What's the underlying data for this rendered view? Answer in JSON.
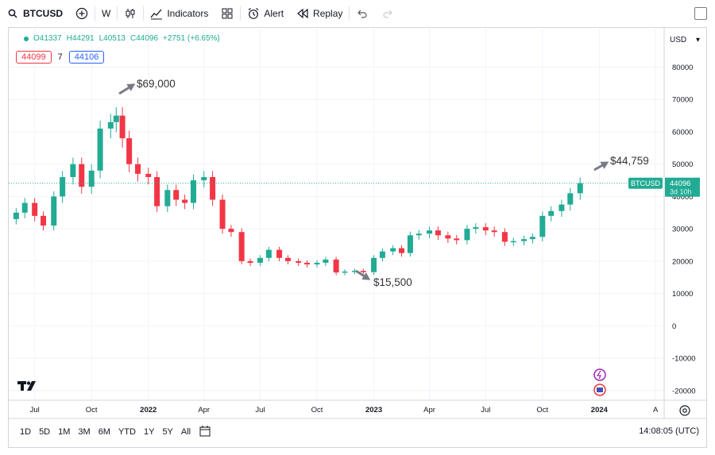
{
  "toolbar": {
    "symbol": "BTCUSD",
    "interval": "W",
    "indicators_label": "Indicators",
    "alert_label": "Alert",
    "replay_label": "Replay"
  },
  "legend": {
    "open": "O41337",
    "high": "H44291",
    "low": "L40513",
    "close": "C44096",
    "change": "+2751 (+6.65%)"
  },
  "price_tags": {
    "bid": "44099",
    "spread": "7",
    "ask": "44106"
  },
  "currency": "USD",
  "last_price": {
    "symbol": "BTCUSD",
    "price": "44096",
    "countdown": "3d 10h"
  },
  "annotations": [
    {
      "text": "$69,000",
      "date": "2021-11",
      "value": 69000
    },
    {
      "text": "$15,500",
      "date": "2022-11",
      "value": 15500
    },
    {
      "text": "$44,759",
      "date": "2023-12",
      "value": 44759
    }
  ],
  "range_buttons": [
    "1D",
    "5D",
    "1M",
    "3M",
    "6M",
    "YTD",
    "1Y",
    "5Y",
    "All"
  ],
  "clock": "14:08:05 (UTC)",
  "colors": {
    "up": "#22ab94",
    "down": "#f23645",
    "annotation": "#787b86"
  },
  "chart_data": {
    "type": "candlestick",
    "x_ticks": [
      "Jul",
      "Oct",
      "2022",
      "Apr",
      "Jul",
      "Oct",
      "2023",
      "Apr",
      "Jul",
      "Oct",
      "2024",
      "A"
    ],
    "y_ticks": [
      80000,
      70000,
      60000,
      50000,
      40000,
      30000,
      20000,
      10000,
      0,
      -10000,
      -20000
    ],
    "ylim": [
      -23000,
      87000
    ],
    "close_series": [
      {
        "date": "2021-06",
        "close": 35000
      },
      {
        "date": "2021-06-15",
        "close": 38000
      },
      {
        "date": "2021-07",
        "close": 34000
      },
      {
        "date": "2021-07-15",
        "close": 31000
      },
      {
        "date": "2021-08",
        "close": 40000
      },
      {
        "date": "2021-08-15",
        "close": 46000
      },
      {
        "date": "2021-09",
        "close": 50000
      },
      {
        "date": "2021-09-15",
        "close": 43000
      },
      {
        "date": "2021-10",
        "close": 48000
      },
      {
        "date": "2021-10-15",
        "close": 61000
      },
      {
        "date": "2021-11",
        "close": 63000
      },
      {
        "date": "2021-11-10",
        "close": 65000
      },
      {
        "date": "2021-11-20",
        "close": 58000
      },
      {
        "date": "2021-12",
        "close": 50000
      },
      {
        "date": "2021-12-15",
        "close": 47000
      },
      {
        "date": "2022-01",
        "close": 46000
      },
      {
        "date": "2022-01-15",
        "close": 37000
      },
      {
        "date": "2022-02",
        "close": 42000
      },
      {
        "date": "2022-02-15",
        "close": 39000
      },
      {
        "date": "2022-03",
        "close": 38000
      },
      {
        "date": "2022-03-15",
        "close": 45000
      },
      {
        "date": "2022-04",
        "close": 46000
      },
      {
        "date": "2022-04-15",
        "close": 39000
      },
      {
        "date": "2022-05",
        "close": 30000
      },
      {
        "date": "2022-05-15",
        "close": 29000
      },
      {
        "date": "2022-06",
        "close": 20000
      },
      {
        "date": "2022-06-15",
        "close": 19500
      },
      {
        "date": "2022-07",
        "close": 21000
      },
      {
        "date": "2022-07-15",
        "close": 23500
      },
      {
        "date": "2022-08",
        "close": 21000
      },
      {
        "date": "2022-08-15",
        "close": 20000
      },
      {
        "date": "2022-09",
        "close": 19500
      },
      {
        "date": "2022-09-15",
        "close": 19000
      },
      {
        "date": "2022-10",
        "close": 19500
      },
      {
        "date": "2022-10-15",
        "close": 20500
      },
      {
        "date": "2022-11",
        "close": 16500
      },
      {
        "date": "2022-11-15",
        "close": 16800
      },
      {
        "date": "2022-12",
        "close": 17000
      },
      {
        "date": "2022-12-15",
        "close": 16600
      },
      {
        "date": "2023-01",
        "close": 21000
      },
      {
        "date": "2023-01-15",
        "close": 23000
      },
      {
        "date": "2023-02",
        "close": 24000
      },
      {
        "date": "2023-02-15",
        "close": 22500
      },
      {
        "date": "2023-03",
        "close": 28000
      },
      {
        "date": "2023-03-15",
        "close": 28500
      },
      {
        "date": "2023-04",
        "close": 29500
      },
      {
        "date": "2023-04-15",
        "close": 28000
      },
      {
        "date": "2023-05",
        "close": 27000
      },
      {
        "date": "2023-05-15",
        "close": 26500
      },
      {
        "date": "2023-06",
        "close": 30000
      },
      {
        "date": "2023-06-15",
        "close": 30500
      },
      {
        "date": "2023-07",
        "close": 29500
      },
      {
        "date": "2023-07-15",
        "close": 29000
      },
      {
        "date": "2023-08",
        "close": 26000
      },
      {
        "date": "2023-08-15",
        "close": 26200
      },
      {
        "date": "2023-09",
        "close": 26800
      },
      {
        "date": "2023-09-15",
        "close": 27500
      },
      {
        "date": "2023-10",
        "close": 34000
      },
      {
        "date": "2023-10-15",
        "close": 35500
      },
      {
        "date": "2023-11",
        "close": 37500
      },
      {
        "date": "2023-11-15",
        "close": 41000
      },
      {
        "date": "2023-12",
        "close": 44096
      }
    ]
  }
}
